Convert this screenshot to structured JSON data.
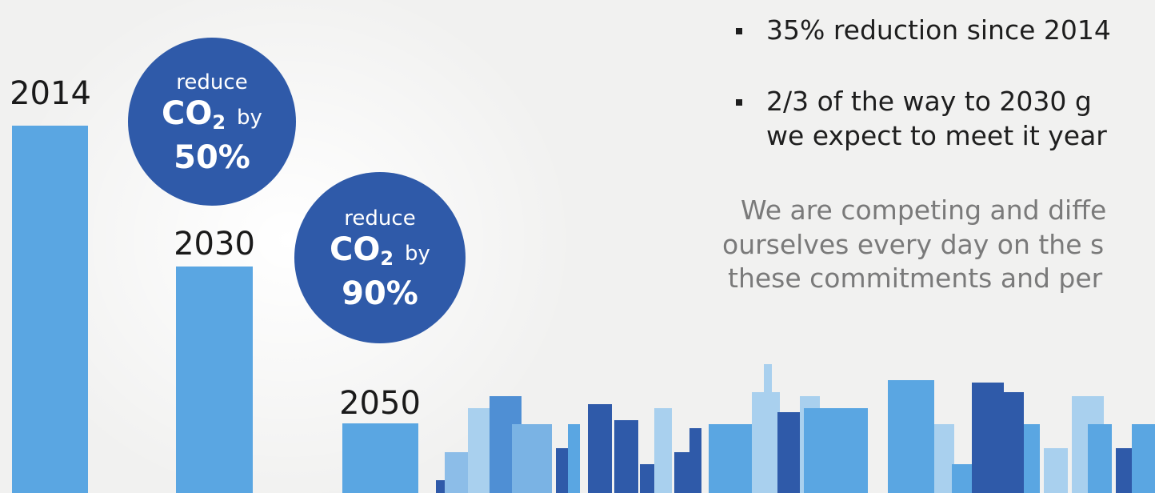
{
  "bars": [
    {
      "label": "2014"
    },
    {
      "label": "2030"
    },
    {
      "label": "2050"
    }
  ],
  "circles": [
    {
      "verb": "reduce",
      "gas": "CO",
      "subscript": "2",
      "by": "by",
      "amount": "50%"
    },
    {
      "verb": "reduce",
      "gas": "CO",
      "subscript": "2",
      "by": "by",
      "amount": "90%"
    }
  ],
  "bullets": [
    [
      "35% reduction since 2014"
    ],
    [
      "2/3 of the way to 2030 g",
      "we expect to meet it year"
    ]
  ],
  "paragraph": [
    "We are competing and diffe",
    "ourselves every day on the s",
    "these commitments and per"
  ]
}
